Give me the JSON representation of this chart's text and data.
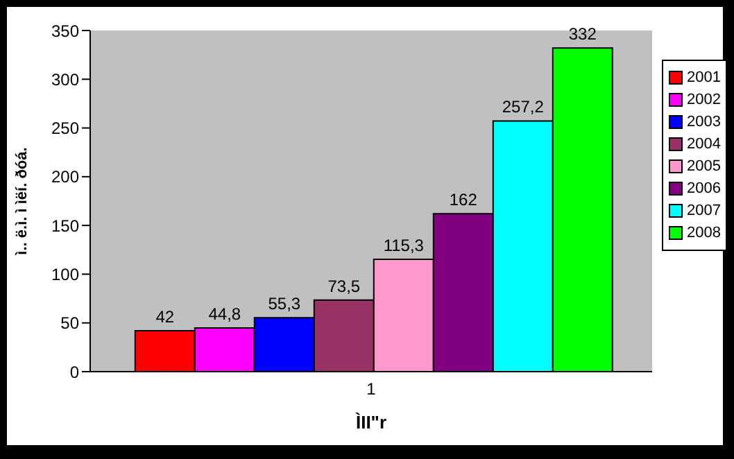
{
  "chart_data": {
    "type": "bar",
    "categories": [
      "1"
    ],
    "xlabel": "ÌII\"r",
    "ylabel": "ì.. ë.ì. ì ìëí. ðóá.",
    "ylim": [
      0,
      350
    ],
    "yticks": [
      0,
      50,
      100,
      150,
      200,
      250,
      300,
      350
    ],
    "grid": false,
    "legend": "right",
    "series": [
      {
        "name": "2001",
        "color": "#ff0000",
        "values": [
          42
        ],
        "value_labels": [
          "42"
        ]
      },
      {
        "name": "2002",
        "color": "#ff00ff",
        "values": [
          44.8
        ],
        "value_labels": [
          "44,8"
        ]
      },
      {
        "name": "2003",
        "color": "#0000ff",
        "values": [
          55.3
        ],
        "value_labels": [
          "55,3"
        ]
      },
      {
        "name": "2004",
        "color": "#993366",
        "values": [
          73.5
        ],
        "value_labels": [
          "73,5"
        ]
      },
      {
        "name": "2005",
        "color": "#ff99cc",
        "values": [
          115.3
        ],
        "value_labels": [
          "115,3"
        ]
      },
      {
        "name": "2006",
        "color": "#800080",
        "values": [
          162
        ],
        "value_labels": [
          "162"
        ]
      },
      {
        "name": "2007",
        "color": "#00ffff",
        "values": [
          257.2
        ],
        "value_labels": [
          "257,2"
        ]
      },
      {
        "name": "2008",
        "color": "#00ff00",
        "values": [
          332
        ],
        "value_labels": [
          "332"
        ]
      }
    ]
  }
}
